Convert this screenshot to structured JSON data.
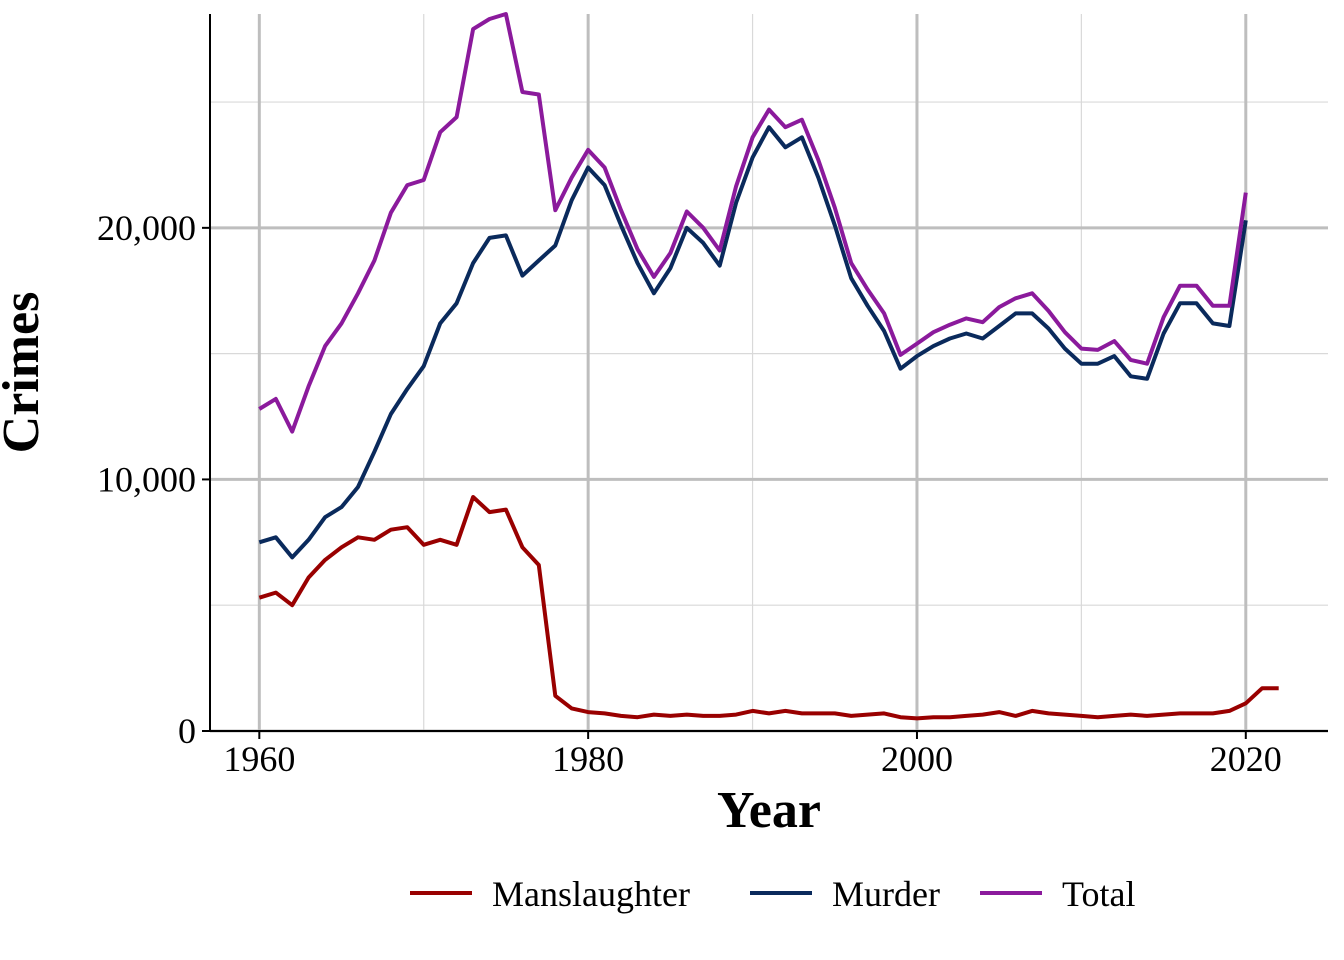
{
  "chart_data": {
    "type": "line",
    "xlabel": "Year",
    "ylabel": "Crimes",
    "xlim": [
      1957,
      2025
    ],
    "ylim": [
      0,
      28500
    ],
    "x_ticks": [
      1960,
      1980,
      2000,
      2020
    ],
    "x_tick_labels": [
      "1960",
      "1980",
      "2000",
      "2020"
    ],
    "y_ticks": [
      0,
      10000,
      20000
    ],
    "y_tick_labels": [
      "0",
      "10,000",
      "20,000"
    ],
    "y_minor_ticks": [
      5000,
      15000,
      25000
    ],
    "x_minor_ticks": [
      1970,
      1990,
      2010
    ],
    "grid": true,
    "legend_position": "bottom",
    "series": [
      {
        "name": "Manslaughter",
        "color": "#990000",
        "x": [
          1960,
          1961,
          1962,
          1963,
          1964,
          1965,
          1966,
          1967,
          1968,
          1969,
          1970,
          1971,
          1972,
          1973,
          1974,
          1975,
          1976,
          1977,
          1978,
          1979,
          1980,
          1981,
          1982,
          1983,
          1984,
          1985,
          1986,
          1987,
          1988,
          1989,
          1990,
          1991,
          1992,
          1993,
          1994,
          1995,
          1996,
          1997,
          1998,
          1999,
          2000,
          2001,
          2002,
          2003,
          2004,
          2005,
          2006,
          2007,
          2008,
          2009,
          2010,
          2011,
          2012,
          2013,
          2014,
          2015,
          2016,
          2017,
          2018,
          2019,
          2020,
          2021,
          2022
        ],
        "y": [
          5300,
          5500,
          5000,
          6100,
          6800,
          7300,
          7700,
          7600,
          8000,
          8100,
          7400,
          7600,
          7400,
          9300,
          8700,
          8800,
          7300,
          6600,
          1400,
          900,
          750,
          700,
          600,
          550,
          650,
          600,
          650,
          600,
          600,
          650,
          800,
          700,
          800,
          700,
          700,
          700,
          600,
          650,
          700,
          550,
          500,
          550,
          550,
          600,
          650,
          750,
          600,
          800,
          700,
          650,
          600,
          550,
          600,
          650,
          600,
          650,
          700,
          700,
          700,
          800,
          1100,
          1700,
          1700
        ]
      },
      {
        "name": "Murder",
        "color": "#0a2a5c",
        "x": [
          1960,
          1961,
          1962,
          1963,
          1964,
          1965,
          1966,
          1967,
          1968,
          1969,
          1970,
          1971,
          1972,
          1973,
          1974,
          1975,
          1976,
          1977,
          1978,
          1979,
          1980,
          1981,
          1982,
          1983,
          1984,
          1985,
          1986,
          1987,
          1988,
          1989,
          1990,
          1991,
          1992,
          1993,
          1994,
          1995,
          1996,
          1997,
          1998,
          1999,
          2000,
          2001,
          2002,
          2003,
          2004,
          2005,
          2006,
          2007,
          2008,
          2009,
          2010,
          2011,
          2012,
          2013,
          2014,
          2015,
          2016,
          2017,
          2018,
          2019,
          2020
        ],
        "y": [
          7500,
          7700,
          6900,
          7600,
          8500,
          8900,
          9700,
          11100,
          12600,
          13600,
          14500,
          16200,
          17000,
          18600,
          19600,
          19700,
          18100,
          18700,
          19300,
          21100,
          22400,
          21700,
          20100,
          18600,
          17400,
          18400,
          20000,
          19400,
          18500,
          21000,
          22800,
          24000,
          23200,
          23600,
          22000,
          20100,
          18000,
          16900,
          15900,
          14400,
          14900,
          15300,
          15600,
          15800,
          15600,
          16100,
          16600,
          16600,
          16000,
          15200,
          14600,
          14600,
          14900,
          14100,
          14000,
          15800,
          17000,
          17000,
          16200,
          16100,
          20300
        ]
      },
      {
        "name": "Total",
        "color": "#8b1a9c",
        "x": [
          1960,
          1961,
          1962,
          1963,
          1964,
          1965,
          1966,
          1967,
          1968,
          1969,
          1970,
          1971,
          1972,
          1973,
          1974,
          1975,
          1976,
          1977,
          1978,
          1979,
          1980,
          1981,
          1982,
          1983,
          1984,
          1985,
          1986,
          1987,
          1988,
          1989,
          1990,
          1991,
          1992,
          1993,
          1994,
          1995,
          1996,
          1997,
          1998,
          1999,
          2000,
          2001,
          2002,
          2003,
          2004,
          2005,
          2006,
          2007,
          2008,
          2009,
          2010,
          2011,
          2012,
          2013,
          2014,
          2015,
          2016,
          2017,
          2018,
          2019,
          2020
        ],
        "y": [
          12800,
          13200,
          11900,
          13700,
          15300,
          16200,
          17400,
          18700,
          20600,
          21700,
          21900,
          23800,
          24400,
          27900,
          28300,
          28500,
          25400,
          25300,
          20700,
          22000,
          23100,
          22400,
          20700,
          19150,
          18050,
          19000,
          20650,
          20000,
          19100,
          21650,
          23600,
          24700,
          24000,
          24300,
          22700,
          20800,
          18600,
          17550,
          16600,
          14950,
          15400,
          15850,
          16150,
          16400,
          16250,
          16850,
          17200,
          17400,
          16700,
          15850,
          15200,
          15150,
          15500,
          14750,
          14600,
          16450,
          17700,
          17700,
          16900,
          16900,
          21400
        ]
      }
    ]
  }
}
